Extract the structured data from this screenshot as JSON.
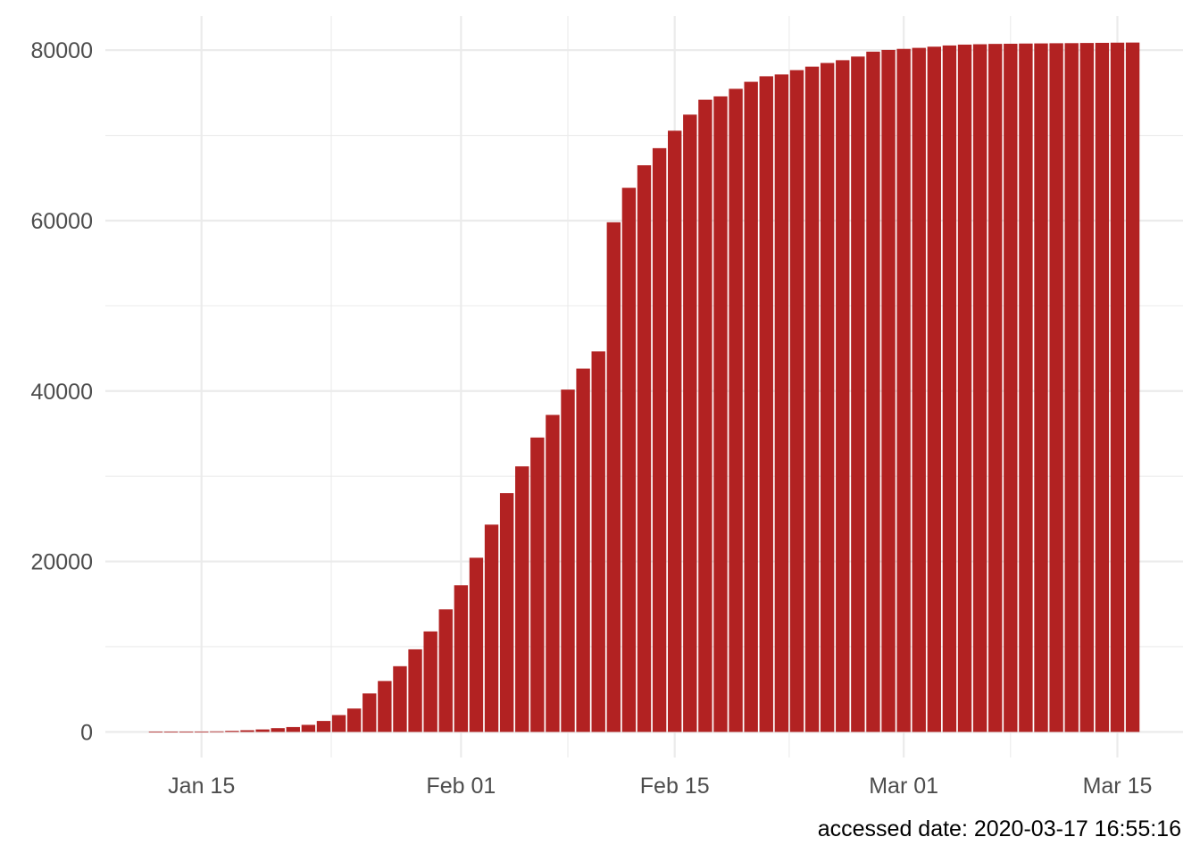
{
  "chart_data": {
    "type": "bar",
    "x": [
      "2020-01-12",
      "2020-01-13",
      "2020-01-14",
      "2020-01-15",
      "2020-01-16",
      "2020-01-17",
      "2020-01-18",
      "2020-01-19",
      "2020-01-20",
      "2020-01-21",
      "2020-01-22",
      "2020-01-23",
      "2020-01-24",
      "2020-01-25",
      "2020-01-26",
      "2020-01-27",
      "2020-01-28",
      "2020-01-29",
      "2020-01-30",
      "2020-01-31",
      "2020-02-01",
      "2020-02-02",
      "2020-02-03",
      "2020-02-04",
      "2020-02-05",
      "2020-02-06",
      "2020-02-07",
      "2020-02-08",
      "2020-02-09",
      "2020-02-10",
      "2020-02-11",
      "2020-02-12",
      "2020-02-13",
      "2020-02-14",
      "2020-02-15",
      "2020-02-16",
      "2020-02-17",
      "2020-02-18",
      "2020-02-19",
      "2020-02-20",
      "2020-02-21",
      "2020-02-22",
      "2020-02-23",
      "2020-02-24",
      "2020-02-25",
      "2020-02-26",
      "2020-02-27",
      "2020-02-28",
      "2020-02-29",
      "2020-03-01",
      "2020-03-02",
      "2020-03-03",
      "2020-03-04",
      "2020-03-05",
      "2020-03-06",
      "2020-03-07",
      "2020-03-08",
      "2020-03-09",
      "2020-03-10",
      "2020-03-11",
      "2020-03-12",
      "2020-03-13",
      "2020-03-14",
      "2020-03-15",
      "2020-03-16"
    ],
    "values": [
      41,
      41,
      41,
      45,
      62,
      121,
      198,
      291,
      440,
      571,
      830,
      1287,
      1975,
      2744,
      4515,
      5974,
      7711,
      9692,
      11791,
      14380,
      17205,
      20438,
      24324,
      28018,
      31161,
      34546,
      37198,
      40171,
      42638,
      44653,
      59804,
      63851,
      66492,
      68500,
      70548,
      72436,
      74185,
      74576,
      75465,
      76288,
      76936,
      77150,
      77658,
      78064,
      78497,
      78824,
      79251,
      79824,
      80026,
      80151,
      80270,
      80409,
      80552,
      80651,
      80695,
      80735,
      80754,
      80778,
      80793,
      80813,
      80824,
      80844,
      80860,
      80881,
      80894
    ],
    "ylim": [
      -3000,
      84000
    ],
    "y_ticks": [
      0,
      20000,
      40000,
      60000,
      80000
    ],
    "y_tick_labels": [
      "0",
      "20000",
      "40000",
      "60000",
      "80000"
    ],
    "x_ticks": [
      "2020-01-15",
      "2020-02-01",
      "2020-02-15",
      "2020-03-01",
      "2020-03-15"
    ],
    "x_tick_labels": [
      "Jan 15",
      "Feb 01",
      "Feb 15",
      "Mar 01",
      "Mar 15"
    ],
    "title": "",
    "xlabel": "",
    "ylabel": "",
    "caption": "accessed date: 2020-03-17 16:55:16",
    "grid": true,
    "legend": "none",
    "bar_color": "#b22222",
    "grid_color": "#ebebeb",
    "background": "#ffffff"
  }
}
